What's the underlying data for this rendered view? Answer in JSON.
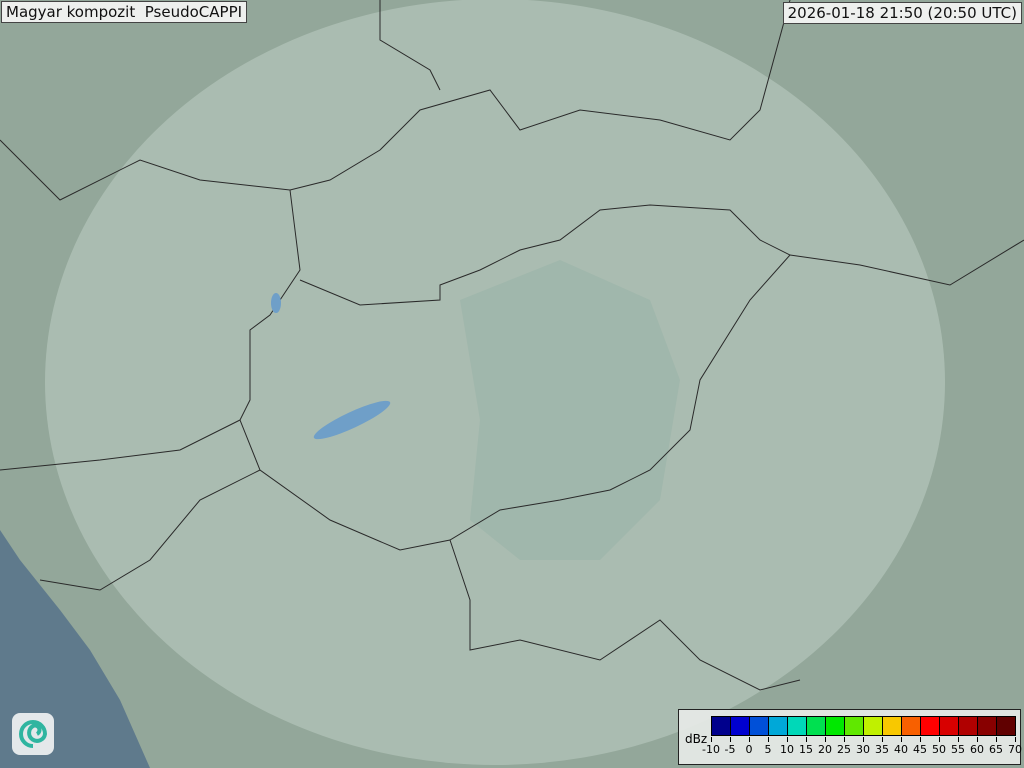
{
  "header": {
    "title": "Magyar kompozit  PseudoCAPPI",
    "timestamp": "2026-01-18 21:50 (20:50 UTC)"
  },
  "legend": {
    "unit": "dBz",
    "ticks": [
      "-10",
      "-5",
      "0",
      "5",
      "10",
      "15",
      "20",
      "25",
      "30",
      "35",
      "40",
      "45",
      "50",
      "55",
      "60",
      "65",
      "70"
    ],
    "colors": [
      "#00008c",
      "#0000d0",
      "#0050d8",
      "#00a8d8",
      "#00d8b8",
      "#00e050",
      "#00e800",
      "#60e800",
      "#c0f000",
      "#f8c800",
      "#f86000",
      "#ff0000",
      "#d80000",
      "#b00000",
      "#880000",
      "#600000"
    ]
  },
  "map": {
    "land_color": "#93a79a",
    "sea_color": "#5f7a8c",
    "radar_coverage_color": "#c8d8cc",
    "border_color": "#2a2a2a",
    "water_color": "#6f9fc8"
  },
  "logo": {
    "icon": "swirl-logo-icon"
  }
}
